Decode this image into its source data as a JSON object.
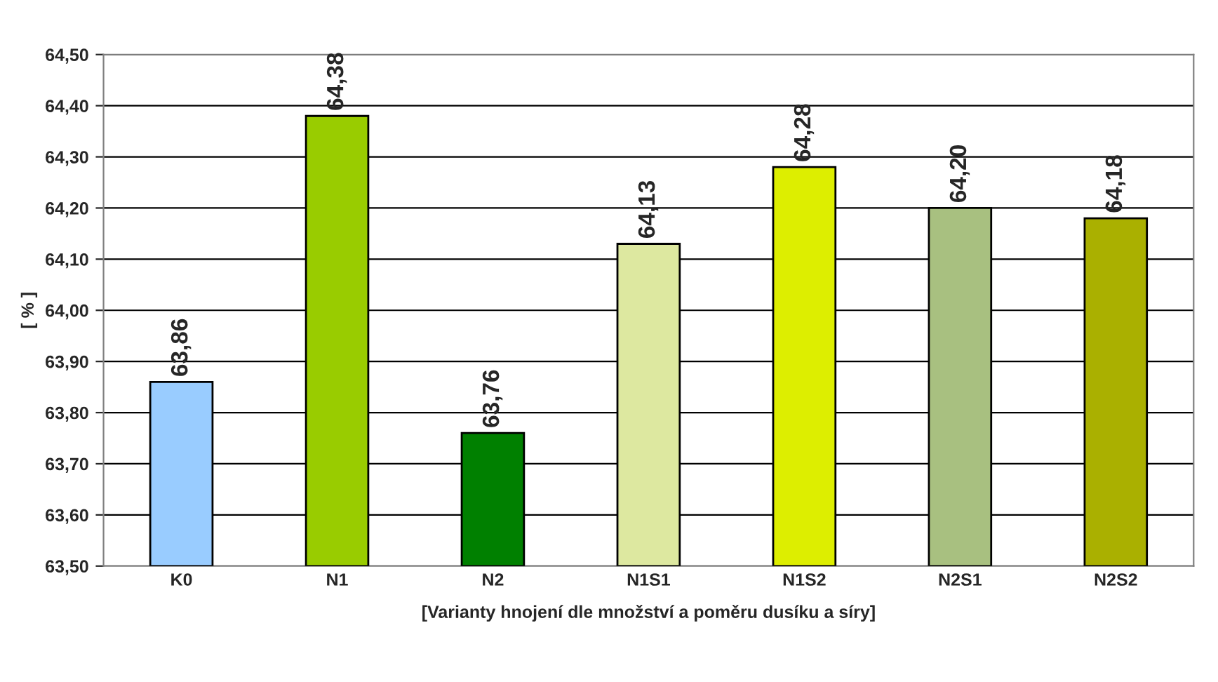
{
  "chart_data": {
    "type": "bar",
    "xlabel": "[Varianty hnojení dle množství a poměru dusíku a síry]",
    "ylabel": "[ % ]",
    "categories": [
      "K0",
      "N1",
      "N2",
      "N1S1",
      "N1S2",
      "N2S1",
      "N2S2"
    ],
    "values": [
      63.86,
      64.38,
      63.76,
      64.13,
      64.28,
      64.2,
      64.18
    ],
    "value_labels": [
      "63,86",
      "64,38",
      "63,76",
      "64,13",
      "64,28",
      "64,20",
      "64,18"
    ],
    "colors": [
      "#99ccff",
      "#99cc00",
      "#008000",
      "#dde8a0",
      "#ddee00",
      "#a8c080",
      "#aab000"
    ],
    "ylim": [
      63.5,
      64.5
    ],
    "yticks": [
      {
        "value": 63.5,
        "label": "63,50"
      },
      {
        "value": 63.6,
        "label": "63,60"
      },
      {
        "value": 63.7,
        "label": "63,70"
      },
      {
        "value": 63.8,
        "label": "63,80"
      },
      {
        "value": 63.9,
        "label": "63,90"
      },
      {
        "value": 64.0,
        "label": "64,00"
      },
      {
        "value": 64.1,
        "label": "64,10"
      },
      {
        "value": 64.2,
        "label": "64,20"
      },
      {
        "value": 64.3,
        "label": "64,30"
      },
      {
        "value": 64.4,
        "label": "64,40"
      },
      {
        "value": 64.5,
        "label": "64,50"
      }
    ],
    "grid": "y",
    "legend": false
  }
}
